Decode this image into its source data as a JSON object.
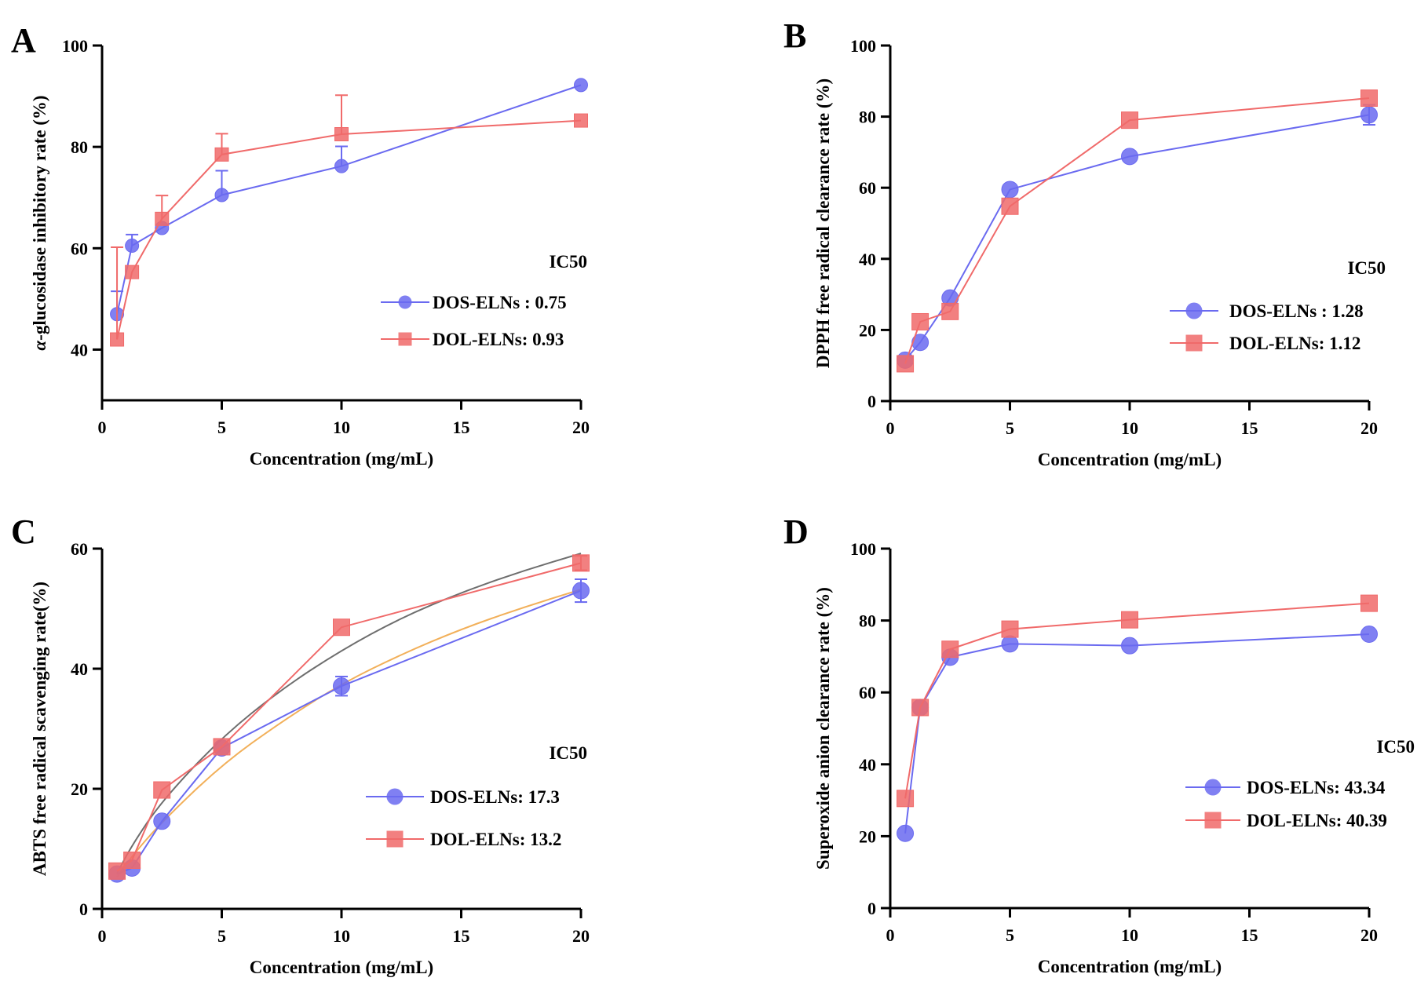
{
  "chart_data": [
    {
      "panel_label": "A",
      "type": "line",
      "xlabel": "Concentration (mg/mL)",
      "ylabel_italic": "α",
      "ylabel": "-glucosidase inhibitory rate (%)",
      "xlim": [
        0,
        20
      ],
      "ylim": [
        30,
        100
      ],
      "xticks": [
        0,
        5,
        10,
        15,
        20
      ],
      "yticks": [
        40,
        60,
        80,
        100
      ],
      "legend_title": "IC50",
      "legend_position": "right",
      "series": [
        {
          "name": "DOS-ELNs : 0.75",
          "marker": "circle",
          "color": "#6a6af0",
          "x": [
            0.625,
            1.25,
            2.5,
            5,
            10,
            20
          ],
          "y": [
            47.0,
            60.5,
            64.0,
            70.5,
            76.2,
            92.2
          ],
          "err": [
            4.5,
            2.2,
            0,
            4.8,
            3.9,
            0
          ]
        },
        {
          "name": "DOL-ELNs: 0.93",
          "marker": "square",
          "color": "#f06a6a",
          "x": [
            0.625,
            1.25,
            2.5,
            5,
            10,
            20
          ],
          "y": [
            42.0,
            55.3,
            65.8,
            78.5,
            82.5,
            85.2
          ],
          "err": [
            18.2,
            0,
            4.6,
            4.1,
            7.7,
            0
          ]
        }
      ]
    },
    {
      "panel_label": "B",
      "type": "line",
      "xlabel": "Concentration (mg/mL)",
      "ylabel": "DPPH free radical clearance rate (%)",
      "xlim": [
        0,
        20
      ],
      "ylim": [
        0,
        100
      ],
      "xticks": [
        0,
        5,
        10,
        15,
        20
      ],
      "yticks": [
        0,
        20,
        40,
        60,
        80,
        100
      ],
      "legend_title": "IC50",
      "legend_position": "right",
      "series": [
        {
          "name": "DOS-ELNs : 1.28",
          "marker": "circle",
          "color": "#6a6af0",
          "x": [
            0.625,
            1.25,
            2.5,
            5,
            10,
            20
          ],
          "y": [
            11.5,
            16.5,
            29.0,
            59.5,
            68.8,
            80.5
          ],
          "err": [
            0,
            0,
            0,
            0,
            0,
            2.8
          ]
        },
        {
          "name": "DOL-ELNs: 1.12",
          "marker": "square",
          "color": "#f06a6a",
          "x": [
            0.625,
            1.25,
            2.5,
            5,
            10,
            20
          ],
          "y": [
            10.5,
            22.3,
            25.2,
            54.8,
            79.0,
            85.2
          ],
          "err": [
            0,
            0,
            0,
            0,
            0,
            0
          ]
        }
      ]
    },
    {
      "panel_label": "C",
      "type": "line",
      "xlabel": "Concentration (mg/mL)",
      "ylabel": "ABTS free radical scavenging rate(%)",
      "xlim": [
        0,
        20
      ],
      "ylim": [
        0,
        60
      ],
      "xticks": [
        0,
        5,
        10,
        15,
        20
      ],
      "yticks": [
        0,
        20,
        40,
        60
      ],
      "legend_title": "IC50",
      "legend_position": "right",
      "series": [
        {
          "name": "DOS-ELNs: 17.3",
          "marker": "circle",
          "color": "#6a6af0",
          "x": [
            0.625,
            1.25,
            2.5,
            5,
            10,
            20
          ],
          "y": [
            5.8,
            6.8,
            14.6,
            26.8,
            37.1,
            53.0
          ],
          "err": [
            0,
            0,
            0,
            0,
            1.6,
            1.9
          ]
        },
        {
          "name": "DOL-ELNs: 13.2",
          "marker": "square",
          "color": "#f06a6a",
          "x": [
            0.625,
            1.25,
            2.5,
            5,
            10,
            20
          ],
          "y": [
            6.3,
            8.1,
            19.8,
            27.0,
            46.9,
            57.6
          ],
          "err": [
            0,
            0,
            0,
            0,
            0,
            1.2
          ]
        }
      ],
      "fit_curves": [
        {
          "color": "#6e6e6e",
          "x": [
            0.625,
            1.25,
            2.5,
            5,
            7.5,
            10,
            12.5,
            15,
            17.5,
            20
          ],
          "y": [
            5.9,
            10.6,
            18.0,
            28.6,
            36.6,
            43.1,
            48.5,
            52.7,
            56.2,
            59.2
          ]
        },
        {
          "color": "#f2b05a",
          "x": [
            0.625,
            1.25,
            2.5,
            5,
            7.5,
            10,
            12.5,
            15,
            17.5,
            20
          ],
          "y": [
            5.3,
            8.8,
            14.5,
            24.0,
            31.2,
            37.5,
            42.4,
            46.6,
            50.1,
            53.2
          ]
        }
      ]
    },
    {
      "panel_label": "D",
      "type": "line",
      "xlabel": "Concentration (mg/mL)",
      "ylabel": "Superoxide anion clearance rate (%)",
      "xlim": [
        0,
        20
      ],
      "ylim": [
        0,
        100
      ],
      "xticks": [
        0,
        5,
        10,
        15,
        20
      ],
      "yticks": [
        0,
        20,
        40,
        60,
        80,
        100
      ],
      "legend_title": "IC50",
      "legend_position": "right",
      "series": [
        {
          "name": "DOS-ELNs: 43.34",
          "marker": "circle",
          "color": "#6a6af0",
          "x": [
            0.625,
            1.25,
            2.5,
            5,
            10,
            20
          ],
          "y": [
            20.8,
            55.8,
            69.8,
            73.5,
            73.0,
            76.2
          ],
          "err": [
            0,
            0,
            0,
            0,
            0,
            0
          ]
        },
        {
          "name": "DOL-ELNs: 40.39",
          "marker": "square",
          "color": "#f06a6a",
          "x": [
            0.625,
            1.25,
            2.5,
            5,
            10,
            20
          ],
          "y": [
            30.5,
            55.8,
            72.0,
            77.6,
            80.2,
            84.8
          ],
          "err": [
            0,
            0,
            0,
            0,
            0,
            0
          ]
        }
      ]
    }
  ]
}
